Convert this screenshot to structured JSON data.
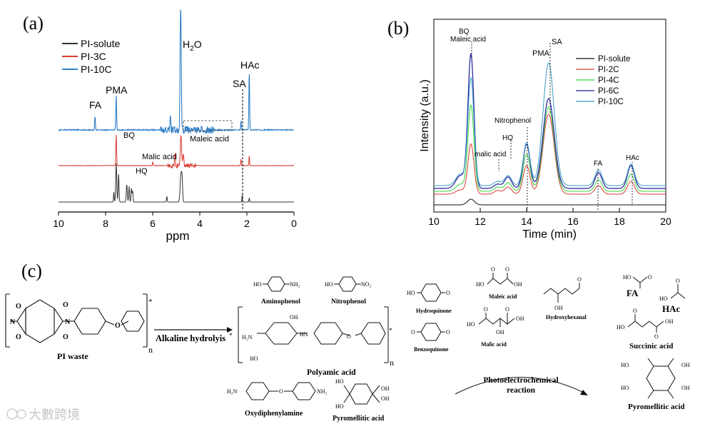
{
  "chart_data": [
    {
      "panel": "(a)",
      "type": "line",
      "xlabel": "ppm",
      "xlim": [
        10,
        0
      ],
      "xticks": [
        10,
        8,
        6,
        4,
        2,
        0
      ],
      "series": [
        {
          "name": "PI-solute",
          "color": "#333333"
        },
        {
          "name": "PI-3C",
          "color": "#d93a34"
        },
        {
          "name": "PI-10C",
          "color": "#2f7fc9"
        }
      ],
      "annotations": [
        "H",
        "O",
        "2",
        "FA",
        "PMA",
        "SA",
        "HAc",
        "BQ",
        "Maleic acid",
        "Malic acid",
        "HQ"
      ],
      "peaks_ppm": {
        "FA": 8.45,
        "PMA": 7.55,
        "H2O": 4.8,
        "SA": 2.25,
        "HAc": 1.9
      }
    },
    {
      "panel": "(b)",
      "type": "line",
      "xlabel": "Time (min)",
      "ylabel": "Intensity (a.u.)",
      "xlim": [
        10,
        20
      ],
      "xticks": [
        10,
        12,
        14,
        16,
        18,
        20
      ],
      "series": [
        {
          "name": "PI-solute",
          "color": "#111111"
        },
        {
          "name": "PI-2C",
          "color": "#d93a34"
        },
        {
          "name": "PI-4C",
          "color": "#36d33a"
        },
        {
          "name": "PI-6C",
          "color": "#1f1f9e"
        },
        {
          "name": "PI-10C",
          "color": "#3a9cc0"
        }
      ],
      "annotations": [
        "BQ",
        "Maleic acid",
        "PMA",
        "SA",
        "Nitrophenol",
        "HQ",
        "malic acid",
        "FA",
        "HAc"
      ],
      "peaks_min": {
        "BQ": 11.6,
        "Maleic acid": 11.6,
        "malic acid": 12.7,
        "HQ": 13.2,
        "Nitrophenol": 14.0,
        "PMA": 14.9,
        "SA": 15.0,
        "FA": 17.1,
        "HAc": 18.5
      }
    }
  ],
  "panel_c": {
    "letter": "(c)",
    "pi_waste": "PI waste",
    "n": "n",
    "asterisk": "*",
    "alkaline": "Alkaline hydrolyis",
    "polyamic": "Polyamic acid",
    "aminophenol": "Aminophenol",
    "nitrophenol": "Nitrophenol",
    "oxydiphenylamine": "Oxydiphenylamine",
    "pyromellitic": "Pyromellitic acid",
    "hydroquinone": "Hydroquinone",
    "benzoquinone": "Benzoquinone",
    "maleic": "Maleic acid",
    "malic": "Malic acid",
    "hydroxyhexanal": "Hydroxyhexanal",
    "pec": "Photoelectrochemical",
    "reaction": "reaction",
    "fa": "FA",
    "hac": "HAc",
    "succinic": "Succinic acid",
    "pyromellitic2": "Pyromellitic acid",
    "atoms": {
      "O": "O",
      "N": "N",
      "HO": "HO",
      "OH": "OH",
      "NH2": "NH₂",
      "NO2": "NO₂",
      "H2N": "H₂N",
      "HN": "HN",
      "H2N_left": "H₂N"
    }
  },
  "watermark": "大數跨境"
}
